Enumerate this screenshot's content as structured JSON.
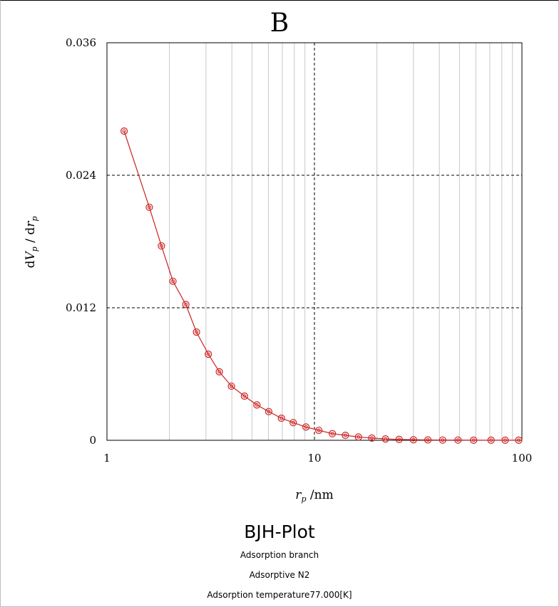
{
  "panel_label": "B",
  "caption": {
    "title": "BJH-Plot",
    "lines": [
      "Adsorption branch",
      "Adsorptive N2",
      "Adsorption temperature77.000[K]"
    ]
  },
  "chart_data": {
    "type": "line",
    "xscale": "log",
    "xlim": [
      1,
      100
    ],
    "ylim": [
      0,
      0.036
    ],
    "x_ticks": [
      "1",
      "10",
      "100"
    ],
    "y_ticks": [
      "0",
      "0.012",
      "0.024",
      "0.036"
    ],
    "series_color": "#cc2222",
    "series": [
      {
        "x": [
          1.21,
          1.6,
          1.83,
          2.08,
          2.4,
          2.7,
          3.08,
          3.48,
          3.98,
          4.6,
          5.28,
          6.02,
          6.93,
          7.9,
          9.1,
          10.5,
          12.2,
          14.1,
          16.3,
          18.9,
          22.0,
          25.6,
          30.0,
          35.2,
          41.5,
          49.2,
          58.5,
          71.0,
          83.0,
          96.5
        ],
        "y": [
          0.028,
          0.0211,
          0.0176,
          0.0144,
          0.0123,
          0.0098,
          0.0078,
          0.0062,
          0.0049,
          0.004,
          0.0032,
          0.0026,
          0.002,
          0.0016,
          0.0012,
          0.0009,
          0.0006,
          0.00045,
          0.0003,
          0.0002,
          0.00012,
          8e-05,
          5e-05,
          3e-05,
          2e-05,
          2e-05,
          1e-05,
          1e-05,
          1e-05,
          1e-05
        ]
      }
    ]
  }
}
